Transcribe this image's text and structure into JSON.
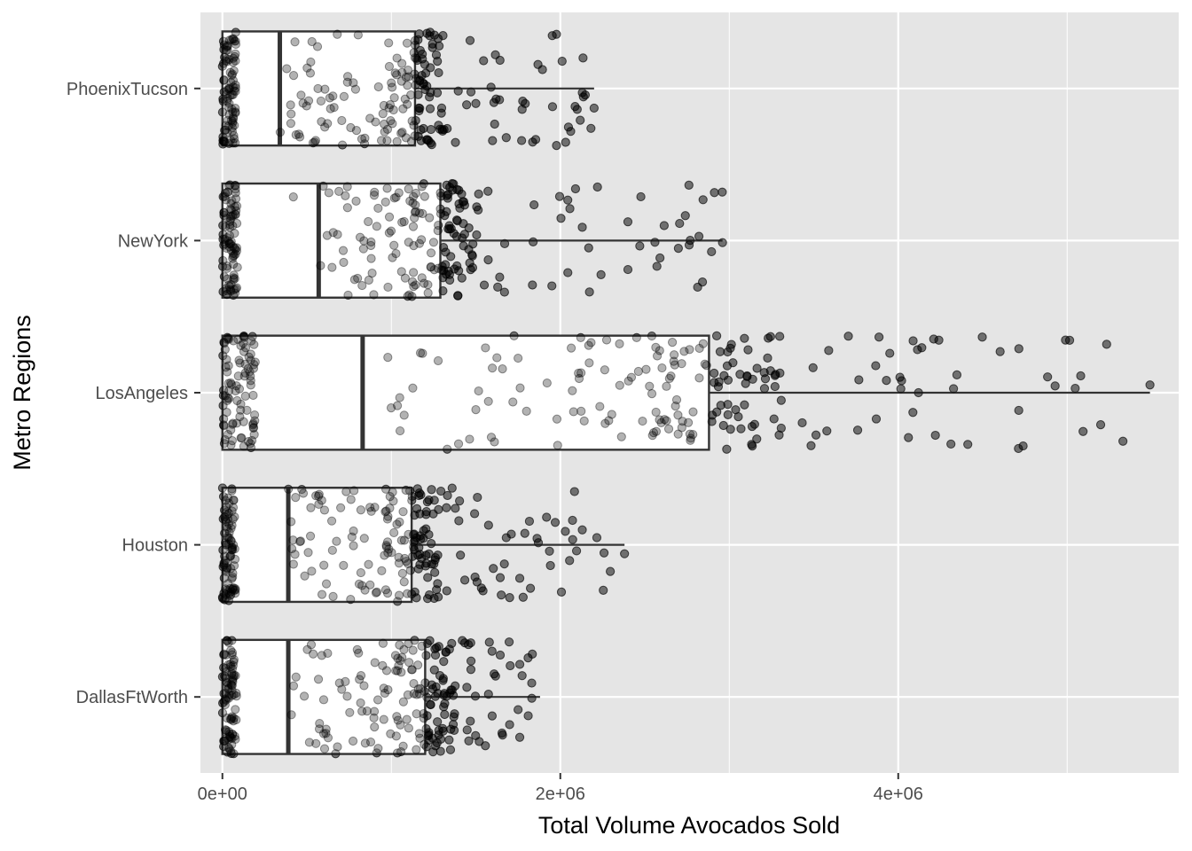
{
  "chart_data": {
    "type": "boxplot",
    "orientation": "horizontal",
    "title": "",
    "xlabel": "Total Volume Avocados Sold",
    "ylabel": "Metro Regions",
    "xlim": [
      -130000,
      5660000
    ],
    "x_ticks": [
      0,
      2000000,
      4000000
    ],
    "x_tick_labels": [
      "0e+00",
      "2e+06",
      "4e+06"
    ],
    "categories": [
      "DallasFtWorth",
      "Houston",
      "LosAngeles",
      "NewYork",
      "PhoenixTucson"
    ],
    "grid": true,
    "legend": "none",
    "point_alpha": 0.3,
    "colors": {
      "panel_background": "#e5e5e5",
      "grid_major": "#ffffff",
      "box_fill": "#ffffff",
      "box_line": "#333333",
      "point": "#000000"
    },
    "boxes": [
      {
        "name": "DallasFtWorth",
        "q1": 0,
        "median": 390000,
        "q3": 1200000,
        "whisker_low": 0,
        "whisker_high": 1880000,
        "outliers": [],
        "extreme_points": [
          1810000,
          1760000,
          1700000,
          1580000,
          1520000,
          670000,
          900000
        ]
      },
      {
        "name": "Houston",
        "q1": 0,
        "median": 390000,
        "q3": 1120000,
        "whisker_low": 0,
        "whisker_high": 2380000,
        "outliers": [],
        "extreme_points": [
          2380000,
          2130000,
          1970000,
          1870000,
          1790000,
          1780000,
          1760000,
          1710000,
          1680000,
          700000,
          840000
        ]
      },
      {
        "name": "LosAngeles",
        "q1": 0,
        "median": 830000,
        "q3": 2880000,
        "whisker_low": 0,
        "whisker_high": 5490000,
        "outliers": [],
        "extreme_points": [
          5490000,
          5080000,
          4990000,
          4220000,
          4210000,
          4120000,
          4020000,
          4010000,
          3950000,
          3930000,
          3870000,
          3760000,
          1500000,
          1610000,
          1750000,
          1800000,
          1980000
        ]
      },
      {
        "name": "NewYork",
        "q1": 0,
        "median": 570000,
        "q3": 1290000,
        "whisker_low": 0,
        "whisker_high": 2960000,
        "outliers": [],
        "extreme_points": [
          2960000,
          2740000,
          2560000,
          2400000,
          2220000,
          2130000,
          2090000,
          1950000,
          420000,
          620000,
          800000,
          900000
        ]
      },
      {
        "name": "PhoenixTucson",
        "q1": 0,
        "median": 340000,
        "q3": 1140000,
        "whisker_low": 0,
        "whisker_high": 2200000,
        "outliers": [],
        "extreme_points": [
          2200000,
          2100000,
          1680000,
          1620000,
          1590000,
          1500000,
          640000,
          720000
        ]
      }
    ]
  }
}
